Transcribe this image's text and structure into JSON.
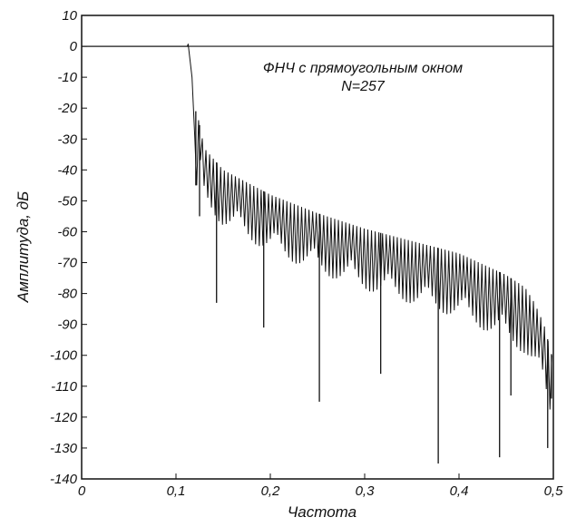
{
  "chart_data": {
    "type": "line",
    "title": "",
    "annotation": {
      "line1": "ФНЧ с прямоугольным окном",
      "line2": "N=257"
    },
    "xlabel": "Частота",
    "ylabel": "Амплитуда, дБ",
    "xlim": [
      0,
      0.5
    ],
    "ylim": [
      -140,
      10
    ],
    "xticks": [
      0,
      0.1,
      0.2,
      0.3,
      0.4,
      0.5
    ],
    "xtick_labels": [
      "0",
      "0,1",
      "0,2",
      "0,3",
      "0,4",
      "0,5"
    ],
    "yticks": [
      10,
      0,
      -10,
      -20,
      -30,
      -40,
      -50,
      -60,
      -70,
      -80,
      -90,
      -100,
      -110,
      -120,
      -130,
      -140
    ],
    "ytick_labels": [
      "10",
      "0",
      "-10",
      "-20",
      "-30",
      "-40",
      "-50",
      "-60",
      "-70",
      "-80",
      "-90",
      "-100",
      "-110",
      "-120",
      "-130",
      "-140"
    ],
    "grid": false,
    "reference_line": {
      "y": 0
    },
    "series": [
      {
        "passband": {
          "x": [
            0,
            0.112
          ],
          "y": [
            0,
            0
          ],
          "ripple_peak": [
            0.113,
            0.8
          ]
        },
        "transition": {
          "x": [
            0.113,
            0.117,
            0.12,
            0.122
          ],
          "y": [
            0.5,
            -10,
            -30,
            -45
          ]
        },
        "sidelobe_envelope": {
          "x": [
            0.122,
            0.13,
            0.15,
            0.2,
            0.25,
            0.3,
            0.35,
            0.4,
            0.45,
            0.47,
            0.48,
            0.49,
            0.5
          ],
          "y": [
            -21,
            -33,
            -40,
            -48,
            -54,
            -59,
            -63,
            -67,
            -74,
            -78,
            -83,
            -90,
            -102
          ]
        },
        "deep_nulls": [
          {
            "x": 0.121,
            "y": -45
          },
          {
            "x": 0.125,
            "y": -55
          },
          {
            "x": 0.143,
            "y": -83
          },
          {
            "x": 0.193,
            "y": -91
          },
          {
            "x": 0.252,
            "y": -115
          },
          {
            "x": 0.317,
            "y": -106
          },
          {
            "x": 0.378,
            "y": -135
          },
          {
            "x": 0.443,
            "y": -133
          },
          {
            "x": 0.455,
            "y": -113
          },
          {
            "x": 0.494,
            "y": -130
          },
          {
            "x": 0.498,
            "y": -114
          }
        ],
        "null_spacing": 0.0039
      }
    ]
  }
}
